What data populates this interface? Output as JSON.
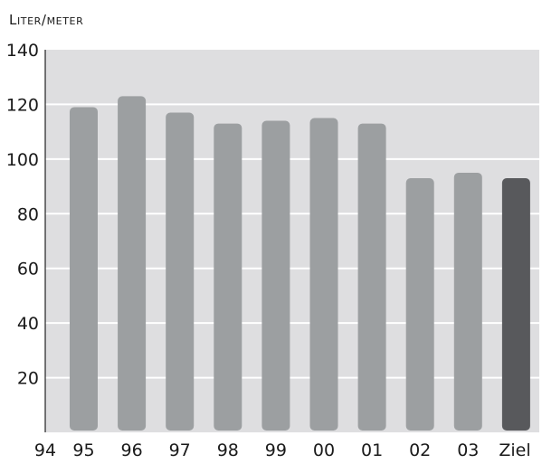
{
  "chart_data": {
    "type": "bar",
    "ylabel": "Liter/meter",
    "categories": [
      "95",
      "96",
      "97",
      "98",
      "99",
      "00",
      "01",
      "02",
      "03",
      "Ziel"
    ],
    "x_tick_labels": [
      "94",
      "95",
      "96",
      "97",
      "98",
      "99",
      "00",
      "01",
      "02",
      "03",
      "Ziel"
    ],
    "values": [
      119,
      123,
      117,
      113,
      114,
      115,
      113,
      93,
      95,
      93
    ],
    "highlighted_category": "Ziel",
    "ylim": [
      0,
      140
    ],
    "y_ticks": [
      20,
      40,
      60,
      80,
      100,
      120,
      140
    ],
    "grid": true,
    "colors": {
      "plot_background": "#dedee0",
      "bar": "#9c9fa1",
      "highlight_bar": "#58595c",
      "gridline": "#ffffff",
      "axis": "#222222"
    }
  }
}
